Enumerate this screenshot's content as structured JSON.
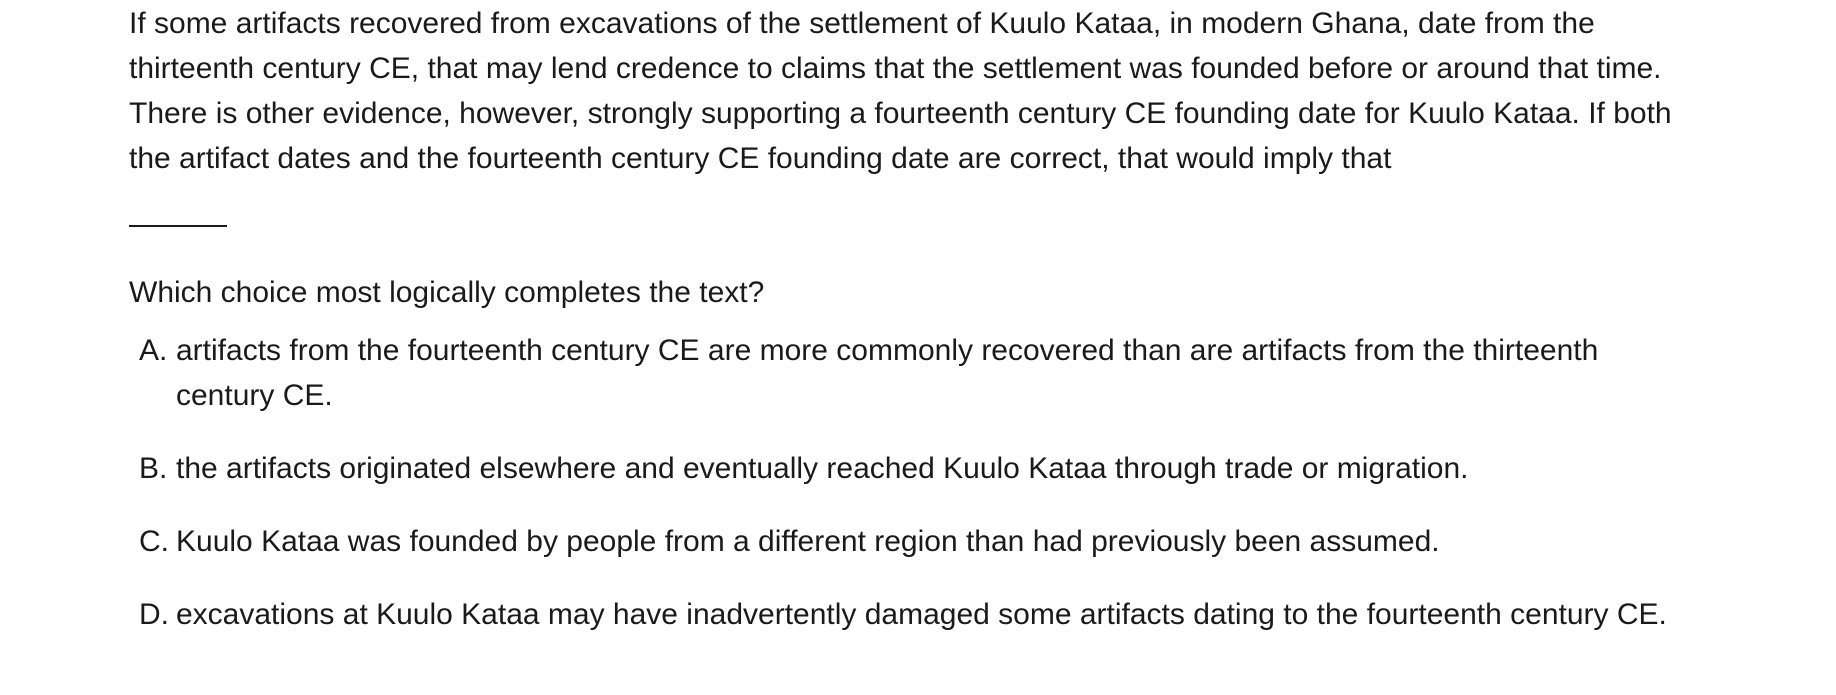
{
  "passage": "If some artifacts recovered from excavations of the settlement of Kuulo Kataa, in modern Ghana, date from the thirteenth century CE, that may lend credence to claims that the settlement was founded before or around that time. There is other evidence, however, strongly supporting a fourteenth century CE founding date for Kuulo Kataa. If both the artifact dates and the fourteenth century CE founding date are correct, that would imply that",
  "question": "Which choice most logically completes the text?",
  "choices": [
    {
      "letter": "A.",
      "text": "artifacts from the fourteenth century CE are more commonly recovered than are artifacts from the thirteenth century CE."
    },
    {
      "letter": "B.",
      "text": "the artifacts originated elsewhere and eventually reached Kuulo Kataa through trade or migration."
    },
    {
      "letter": "C.",
      "text": "Kuulo Kataa was founded by people from a different region than had previously been assumed."
    },
    {
      "letter": "D.",
      "text": "excavations at Kuulo Kataa may have inadvertently damaged some artifacts dating to the fourteenth century CE."
    }
  ]
}
